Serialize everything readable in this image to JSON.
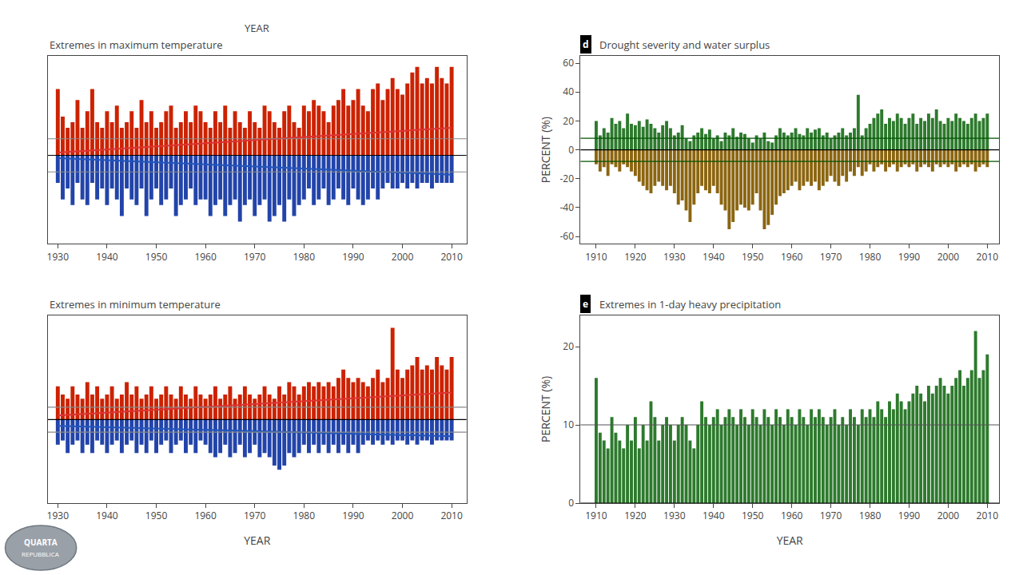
{
  "chart_data": [
    {
      "type": "bar",
      "title": "Extremes in maximum temperature",
      "x": [
        1930,
        1931,
        1932,
        1933,
        1934,
        1935,
        1936,
        1937,
        1938,
        1939,
        1940,
        1941,
        1942,
        1943,
        1944,
        1945,
        1946,
        1947,
        1948,
        1949,
        1950,
        1951,
        1952,
        1953,
        1954,
        1955,
        1956,
        1957,
        1958,
        1959,
        1960,
        1961,
        1962,
        1963,
        1964,
        1965,
        1966,
        1967,
        1968,
        1969,
        1970,
        1971,
        1972,
        1973,
        1974,
        1975,
        1976,
        1977,
        1978,
        1979,
        1980,
        1981,
        1982,
        1983,
        1984,
        1985,
        1986,
        1987,
        1988,
        1989,
        1990,
        1991,
        1992,
        1993,
        1994,
        1995,
        1996,
        1997,
        1998,
        1999,
        2000,
        2001,
        2002,
        2003,
        2004,
        2005,
        2006,
        2007,
        2008,
        2009,
        2010
      ],
      "series": [
        {
          "color": "#cc2200",
          "values": [
            12,
            7,
            5,
            6,
            10,
            5,
            8,
            12,
            6,
            5,
            8,
            6,
            9,
            5,
            6,
            8,
            5,
            10,
            6,
            8,
            5,
            6,
            8,
            9,
            5,
            6,
            8,
            6,
            9,
            8,
            6,
            5,
            8,
            6,
            9,
            5,
            8,
            6,
            5,
            8,
            6,
            5,
            9,
            8,
            6,
            5,
            8,
            9,
            6,
            5,
            9,
            8,
            10,
            9,
            8,
            6,
            9,
            10,
            12,
            9,
            10,
            12,
            9,
            8,
            12,
            13,
            10,
            12,
            14,
            12,
            11,
            13,
            15,
            16,
            13,
            14,
            13,
            16,
            14,
            13,
            16
          ]
        },
        {
          "color": "#2244aa",
          "values": [
            -5,
            -8,
            -6,
            -9,
            -5,
            -8,
            -9,
            -5,
            -8,
            -6,
            -9,
            -6,
            -8,
            -11,
            -6,
            -8,
            -9,
            -6,
            -11,
            -8,
            -6,
            -9,
            -8,
            -6,
            -11,
            -9,
            -8,
            -6,
            -9,
            -8,
            -8,
            -11,
            -9,
            -8,
            -11,
            -9,
            -8,
            -12,
            -9,
            -8,
            -11,
            -9,
            -8,
            -12,
            -11,
            -9,
            -12,
            -8,
            -11,
            -9,
            -8,
            -6,
            -9,
            -8,
            -6,
            -9,
            -8,
            -6,
            -8,
            -9,
            -6,
            -8,
            -9,
            -8,
            -6,
            -8,
            -6,
            -5,
            -6,
            -6,
            -5,
            -6,
            -5,
            -6,
            -5,
            -5,
            -6,
            -5,
            -5,
            -5,
            -5
          ]
        },
        {
          "type": "line",
          "color": "#dd3333",
          "x": [
            1930,
            2010
          ],
          "values": [
            0.5,
            5.0
          ]
        },
        {
          "type": "line",
          "color": "#2255bb",
          "x": [
            1930,
            2010
          ],
          "values": [
            -0.5,
            -3.5
          ]
        }
      ],
      "reference_lines": [
        {
          "value": 0,
          "color": "#000000"
        },
        {
          "value": 3,
          "color": "#888888"
        },
        {
          "value": -3,
          "color": "#888888"
        }
      ],
      "xlim": [
        1928,
        2013
      ],
      "xticks": [
        1930,
        1940,
        1950,
        1960,
        1970,
        1980,
        1990,
        2000,
        2010
      ],
      "ylim": [
        -16,
        18
      ],
      "tick_labels": "x",
      "grid": false
    },
    {
      "type": "bar",
      "title": "Extremes in minimum temperature",
      "xlabel": "YEAR",
      "x": [
        1930,
        1931,
        1932,
        1933,
        1934,
        1935,
        1936,
        1937,
        1938,
        1939,
        1940,
        1941,
        1942,
        1943,
        1944,
        1945,
        1946,
        1947,
        1948,
        1949,
        1950,
        1951,
        1952,
        1953,
        1954,
        1955,
        1956,
        1957,
        1958,
        1959,
        1960,
        1961,
        1962,
        1963,
        1964,
        1965,
        1966,
        1967,
        1968,
        1969,
        1970,
        1971,
        1972,
        1973,
        1974,
        1975,
        1976,
        1977,
        1978,
        1979,
        1980,
        1981,
        1982,
        1983,
        1984,
        1985,
        1986,
        1987,
        1988,
        1989,
        1990,
        1991,
        1992,
        1993,
        1994,
        1995,
        1996,
        1997,
        1998,
        1999,
        2000,
        2001,
        2002,
        2003,
        2004,
        2005,
        2006,
        2007,
        2008,
        2009,
        2010
      ],
      "series": [
        {
          "color": "#cc2200",
          "values": [
            8,
            6,
            5,
            8,
            6,
            5,
            9,
            6,
            8,
            5,
            6,
            8,
            5,
            6,
            9,
            6,
            8,
            5,
            6,
            8,
            5,
            6,
            8,
            6,
            5,
            8,
            6,
            5,
            8,
            6,
            5,
            6,
            8,
            5,
            6,
            8,
            5,
            6,
            8,
            6,
            5,
            6,
            8,
            6,
            5,
            8,
            6,
            9,
            8,
            6,
            8,
            9,
            8,
            9,
            8,
            9,
            8,
            10,
            12,
            10,
            9,
            10,
            9,
            8,
            10,
            12,
            9,
            10,
            22,
            12,
            10,
            12,
            13,
            15,
            12,
            13,
            12,
            15,
            13,
            12,
            15
          ]
        },
        {
          "color": "#2244aa",
          "values": [
            -6,
            -5,
            -8,
            -6,
            -5,
            -8,
            -6,
            -8,
            -5,
            -6,
            -8,
            -6,
            -5,
            -8,
            -6,
            -5,
            -8,
            -6,
            -8,
            -5,
            -8,
            -6,
            -5,
            -8,
            -6,
            -5,
            -8,
            -6,
            -8,
            -5,
            -6,
            -8,
            -9,
            -8,
            -6,
            -9,
            -8,
            -6,
            -9,
            -8,
            -6,
            -9,
            -8,
            -9,
            -11,
            -12,
            -11,
            -8,
            -9,
            -8,
            -6,
            -8,
            -6,
            -8,
            -6,
            -8,
            -6,
            -8,
            -6,
            -8,
            -6,
            -8,
            -6,
            -5,
            -6,
            -5,
            -6,
            -5,
            -6,
            -5,
            -5,
            -6,
            -5,
            -6,
            -5,
            -5,
            -6,
            -5,
            -5,
            -5,
            -5
          ]
        },
        {
          "type": "line",
          "color": "#dd3333",
          "x": [
            1930,
            2010
          ],
          "values": [
            1.0,
            6.5
          ]
        },
        {
          "type": "line",
          "color": "#2255bb",
          "x": [
            1930,
            2010
          ],
          "values": [
            -1.5,
            -4.0
          ]
        }
      ],
      "reference_lines": [
        {
          "value": 0,
          "color": "#000000"
        },
        {
          "value": 3,
          "color": "#888888"
        },
        {
          "value": -3,
          "color": "#888888"
        }
      ],
      "xlim": [
        1928,
        2013
      ],
      "xticks": [
        1930,
        1940,
        1950,
        1960,
        1970,
        1980,
        1990,
        2000,
        2010
      ],
      "ylim": [
        -20,
        25
      ],
      "tick_labels": "x",
      "grid": false
    },
    {
      "type": "bar",
      "title": "Drought severity and water surplus",
      "annotations": [
        "d"
      ],
      "ylabel": "PERCENT (%)",
      "x": [
        1910,
        1911,
        1912,
        1913,
        1914,
        1915,
        1916,
        1917,
        1918,
        1919,
        1920,
        1921,
        1922,
        1923,
        1924,
        1925,
        1926,
        1927,
        1928,
        1929,
        1930,
        1931,
        1932,
        1933,
        1934,
        1935,
        1936,
        1937,
        1938,
        1939,
        1940,
        1941,
        1942,
        1943,
        1944,
        1945,
        1946,
        1947,
        1948,
        1949,
        1950,
        1951,
        1952,
        1953,
        1954,
        1955,
        1956,
        1957,
        1958,
        1959,
        1960,
        1961,
        1962,
        1963,
        1964,
        1965,
        1966,
        1967,
        1968,
        1969,
        1970,
        1971,
        1972,
        1973,
        1974,
        1975,
        1976,
        1977,
        1978,
        1979,
        1980,
        1981,
        1982,
        1983,
        1984,
        1985,
        1986,
        1987,
        1988,
        1989,
        1990,
        1991,
        1992,
        1993,
        1994,
        1995,
        1996,
        1997,
        1998,
        1999,
        2000,
        2001,
        2002,
        2003,
        2004,
        2005,
        2006,
        2007,
        2008,
        2009,
        2010
      ],
      "series": [
        {
          "color": "#2d7a2d",
          "values": [
            20,
            10,
            15,
            12,
            22,
            18,
            20,
            15,
            25,
            18,
            17,
            20,
            16,
            21,
            18,
            15,
            12,
            17,
            20,
            15,
            10,
            12,
            17,
            8,
            6,
            10,
            12,
            15,
            11,
            14,
            8,
            10,
            6,
            12,
            10,
            15,
            9,
            12,
            11,
            8,
            5,
            10,
            8,
            12,
            6,
            5,
            10,
            15,
            12,
            10,
            12,
            15,
            11,
            10,
            15,
            12,
            14,
            15,
            10,
            12,
            8,
            10,
            12,
            15,
            10,
            12,
            15,
            38,
            10,
            15,
            18,
            22,
            25,
            28,
            18,
            22,
            20,
            25,
            22,
            18,
            22,
            25,
            18,
            22,
            20,
            25,
            22,
            28,
            20,
            18,
            22,
            20,
            25,
            22,
            20,
            18,
            22,
            25,
            20,
            22,
            25
          ]
        },
        {
          "color": "#8b6510",
          "values": [
            -10,
            -15,
            -12,
            -18,
            -10,
            -12,
            -15,
            -10,
            -12,
            -15,
            -18,
            -22,
            -25,
            -28,
            -30,
            -25,
            -22,
            -25,
            -28,
            -25,
            -30,
            -38,
            -35,
            -42,
            -50,
            -38,
            -30,
            -25,
            -28,
            -30,
            -25,
            -30,
            -38,
            -42,
            -55,
            -50,
            -42,
            -38,
            -40,
            -42,
            -38,
            -30,
            -42,
            -55,
            -52,
            -45,
            -38,
            -32,
            -30,
            -28,
            -25,
            -22,
            -28,
            -25,
            -22,
            -25,
            -22,
            -28,
            -25,
            -22,
            -18,
            -22,
            -25,
            -18,
            -22,
            -15,
            -18,
            -12,
            -18,
            -15,
            -10,
            -15,
            -12,
            -10,
            -15,
            -12,
            -10,
            -15,
            -12,
            -10,
            -12,
            -10,
            -15,
            -12,
            -10,
            -12,
            -15,
            -10,
            -12,
            -10,
            -12,
            -10,
            -15,
            -12,
            -10,
            -12,
            -10,
            -15,
            -12,
            -10,
            -12
          ]
        }
      ],
      "reference_lines": [
        {
          "value": 0,
          "color": "#000000"
        },
        {
          "value": 8,
          "color": "#005500"
        },
        {
          "value": -8,
          "color": "#005500"
        }
      ],
      "xlim": [
        1906,
        2013
      ],
      "xticks": [
        1910,
        1920,
        1930,
        1940,
        1950,
        1960,
        1970,
        1980,
        1990,
        2000,
        2010
      ],
      "ylim": [
        -65,
        65
      ],
      "yticks": [
        -60,
        -40,
        -20,
        0,
        20,
        40,
        60
      ],
      "grid": false
    },
    {
      "type": "bar",
      "title": "Extremes in 1-day heavy precipitation",
      "annotations": [
        "e"
      ],
      "xlabel": "YEAR",
      "ylabel": "PERCENT (%)",
      "x": [
        1910,
        1911,
        1912,
        1913,
        1914,
        1915,
        1916,
        1917,
        1918,
        1919,
        1920,
        1921,
        1922,
        1923,
        1924,
        1925,
        1926,
        1927,
        1928,
        1929,
        1930,
        1931,
        1932,
        1933,
        1934,
        1935,
        1936,
        1937,
        1938,
        1939,
        1940,
        1941,
        1942,
        1943,
        1944,
        1945,
        1946,
        1947,
        1948,
        1949,
        1950,
        1951,
        1952,
        1953,
        1954,
        1955,
        1956,
        1957,
        1958,
        1959,
        1960,
        1961,
        1962,
        1963,
        1964,
        1965,
        1966,
        1967,
        1968,
        1969,
        1970,
        1971,
        1972,
        1973,
        1974,
        1975,
        1976,
        1977,
        1978,
        1979,
        1980,
        1981,
        1982,
        1983,
        1984,
        1985,
        1986,
        1987,
        1988,
        1989,
        1990,
        1991,
        1992,
        1993,
        1994,
        1995,
        1996,
        1997,
        1998,
        1999,
        2000,
        2001,
        2002,
        2003,
        2004,
        2005,
        2006,
        2007,
        2008,
        2009,
        2010
      ],
      "series": [
        {
          "color": "#2d7a2d",
          "values": [
            16,
            9,
            8,
            7,
            11,
            9,
            8,
            7,
            10,
            8,
            11,
            7,
            10,
            8,
            13,
            11,
            8,
            10,
            11,
            10,
            8,
            10,
            11,
            10,
            8,
            7,
            10,
            13,
            11,
            10,
            11,
            12,
            10,
            11,
            12,
            11,
            10,
            12,
            11,
            10,
            12,
            11,
            10,
            12,
            11,
            10,
            12,
            11,
            10,
            12,
            11,
            10,
            12,
            11,
            10,
            12,
            11,
            12,
            11,
            10,
            11,
            12,
            10,
            11,
            10,
            12,
            11,
            10,
            12,
            11,
            12,
            11,
            13,
            12,
            11,
            13,
            12,
            14,
            13,
            12,
            13,
            14,
            15,
            14,
            13,
            15,
            14,
            15,
            16,
            15,
            14,
            15,
            16,
            17,
            15,
            16,
            17,
            22,
            16,
            17,
            19
          ]
        }
      ],
      "reference_lines": [
        {
          "value": 0,
          "color": "#000000"
        },
        {
          "value": 10,
          "color": "#555555"
        }
      ],
      "xlim": [
        1906,
        2013
      ],
      "xticks": [
        1910,
        1920,
        1930,
        1940,
        1950,
        1960,
        1970,
        1980,
        1990,
        2000,
        2010
      ],
      "ylim": [
        0,
        24
      ],
      "yticks": [
        0,
        10,
        20
      ],
      "grid": false
    }
  ],
  "annotations": [
    "YEAR",
    "QUARTA",
    "REPUBBLICA"
  ]
}
